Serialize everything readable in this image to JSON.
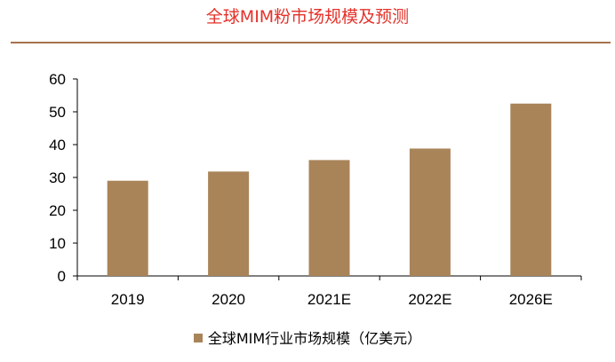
{
  "colors": {
    "title": "#e4322a",
    "rule": "#a8714a",
    "bar": "#a98459",
    "axis": "#000000"
  },
  "chart_data": {
    "type": "bar",
    "title": "全球MIM粉市场规模及预测",
    "xlabel": "",
    "ylabel": "",
    "categories": [
      "2019",
      "2020",
      "2021E",
      "2022E",
      "2026E"
    ],
    "series": [
      {
        "name": "全球MIM行业市场规模（亿美元）",
        "values": [
          29,
          31.8,
          35.3,
          38.8,
          52.5
        ]
      }
    ],
    "ylim": [
      0,
      60
    ],
    "yticks": [
      0,
      10,
      20,
      30,
      40,
      50,
      60
    ],
    "grid": false,
    "legend": "bottom"
  }
}
